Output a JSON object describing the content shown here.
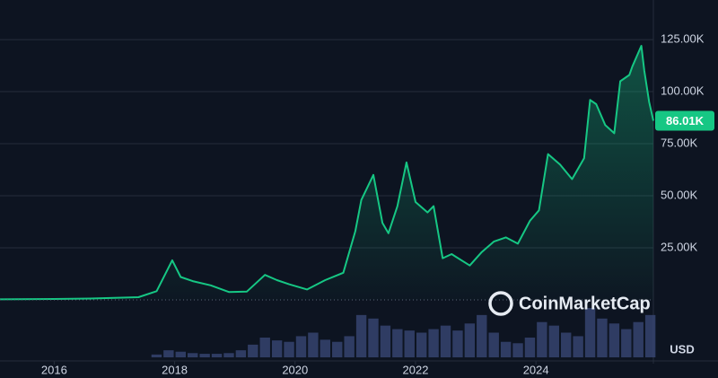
{
  "chart_data": {
    "type": "area",
    "x": [
      2015.1,
      2016.0,
      2016.6,
      2017.0,
      2017.4,
      2017.7,
      2017.96,
      2018.1,
      2018.3,
      2018.6,
      2018.9,
      2019.2,
      2019.5,
      2019.7,
      2019.9,
      2020.2,
      2020.5,
      2020.8,
      2021.0,
      2021.1,
      2021.3,
      2021.45,
      2021.55,
      2021.7,
      2021.85,
      2022.0,
      2022.2,
      2022.3,
      2022.45,
      2022.6,
      2022.9,
      2023.1,
      2023.3,
      2023.5,
      2023.7,
      2023.9,
      2024.05,
      2024.2,
      2024.4,
      2024.6,
      2024.8,
      2024.9,
      2025.0,
      2025.15,
      2025.3,
      2025.4,
      2025.55,
      2025.6,
      2025.75,
      2025.8,
      2025.88,
      2025.95
    ],
    "values": [
      250,
      430,
      650,
      1000,
      1300,
      4200,
      19000,
      11000,
      9000,
      7000,
      3800,
      4000,
      12000,
      9500,
      7500,
      5000,
      9500,
      13000,
      33000,
      48000,
      60000,
      37000,
      32000,
      45000,
      66000,
      47000,
      42000,
      45000,
      20000,
      22000,
      16500,
      23000,
      28000,
      30000,
      27000,
      38000,
      43000,
      70000,
      65000,
      58000,
      68000,
      96000,
      94000,
      84000,
      80000,
      105000,
      108000,
      112000,
      122000,
      110000,
      95000,
      86010
    ],
    "color": "#16c784",
    "xlim": [
      2015.1,
      2025.95
    ],
    "xticks": [
      2016,
      2018,
      2020,
      2022,
      2024
    ],
    "ylim": [
      0,
      144000
    ],
    "yticks": [
      {
        "value": 25000,
        "label": "25.00K"
      },
      {
        "value": 50000,
        "label": "50.00K"
      },
      {
        "value": 75000,
        "label": "75.00K"
      },
      {
        "value": 100000,
        "label": "100.00K"
      },
      {
        "value": 125000,
        "label": "125.00K"
      }
    ],
    "grid": true,
    "last_price": {
      "value": 86010,
      "label": "86.01K"
    },
    "volume": {
      "x": [
        2017.7,
        2017.9,
        2018.1,
        2018.3,
        2018.5,
        2018.7,
        2018.9,
        2019.1,
        2019.3,
        2019.5,
        2019.7,
        2019.9,
        2020.1,
        2020.3,
        2020.5,
        2020.7,
        2020.9,
        2021.1,
        2021.3,
        2021.5,
        2021.7,
        2021.9,
        2022.1,
        2022.3,
        2022.5,
        2022.7,
        2022.9,
        2023.1,
        2023.3,
        2023.5,
        2023.7,
        2023.9,
        2024.1,
        2024.3,
        2024.5,
        2024.7,
        2024.9,
        2025.1,
        2025.3,
        2025.5,
        2025.7,
        2025.9
      ],
      "values": [
        4,
        10,
        8,
        6,
        5,
        5,
        6,
        10,
        18,
        28,
        24,
        22,
        30,
        35,
        25,
        22,
        30,
        60,
        55,
        45,
        40,
        38,
        35,
        40,
        45,
        38,
        48,
        60,
        35,
        22,
        20,
        28,
        50,
        45,
        35,
        30,
        70,
        55,
        48,
        40,
        50,
        60
      ]
    },
    "watermark": "CoinMarketCap",
    "currency": "USD"
  }
}
